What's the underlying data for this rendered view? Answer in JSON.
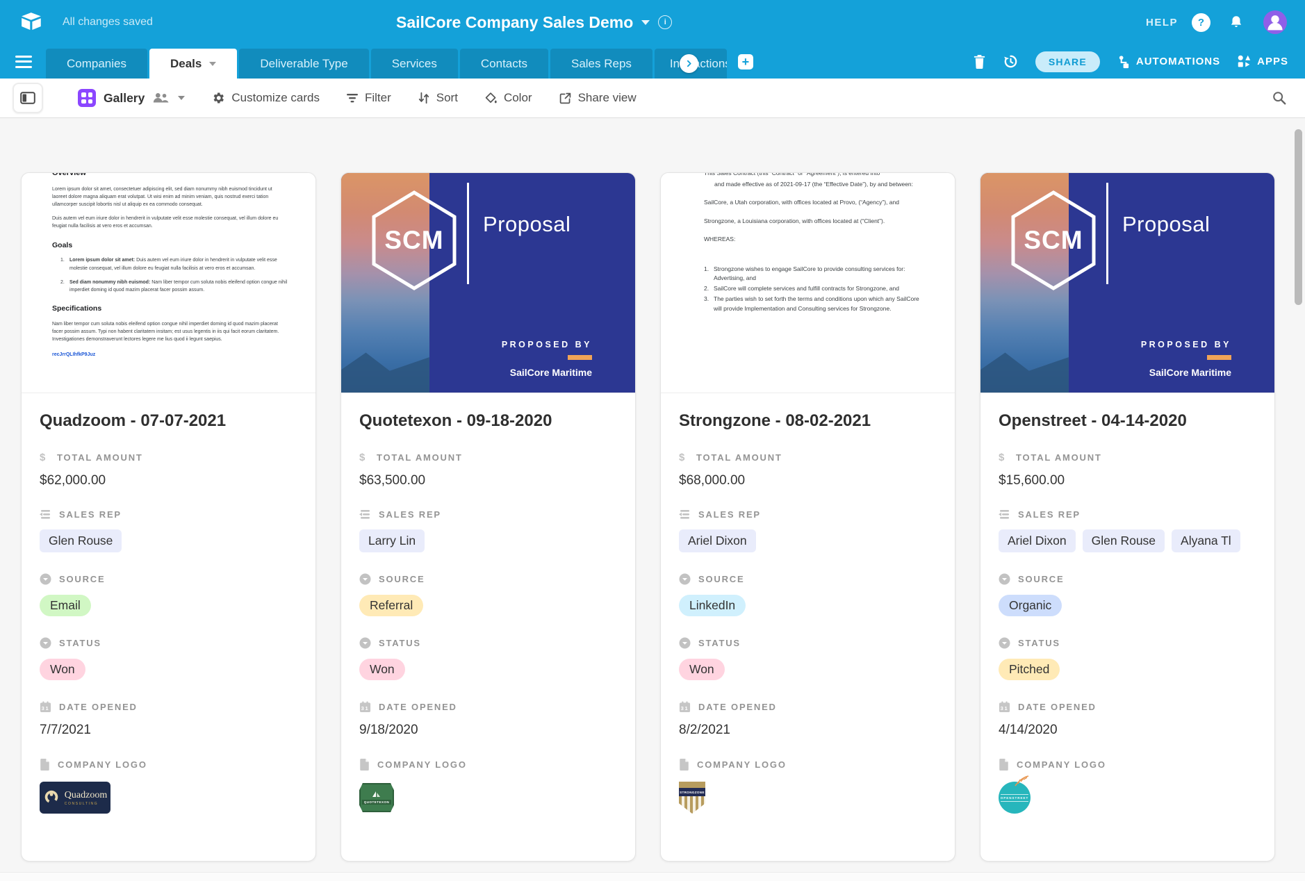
{
  "colors": {
    "topbar_bg": "#14a1d9",
    "tab_inactive_overlay": "rgba(0,0,0,0.13)",
    "active_tab_text": "#333333",
    "share_pill_bg": "#c9ecfa",
    "share_pill_text": "#0f9bd2",
    "gallery_purple": "#8b46ff",
    "avatar_bg": "#8f5fe8",
    "proposal_navy": "#2c3792",
    "accent_orange": "#f0a457",
    "content_bg": "#f6f6f6",
    "rep_chip_bg": "#e9ecfb"
  },
  "icons": {
    "help_glyph": "?",
    "info_glyph": "i",
    "plus_glyph": "+",
    "currency_glyph": "$",
    "calendar_glyph": "31"
  },
  "topbar": {
    "status": "All changes saved",
    "title": "SailCore Company Sales Demo",
    "help": "HELP"
  },
  "tabs": [
    "Companies",
    "Deals",
    "Deliverable Type",
    "Services",
    "Contacts",
    "Sales Reps",
    "Interactions"
  ],
  "active_tab": "Deals",
  "tabbar_actions": {
    "share": "SHARE",
    "automations": "AUTOMATIONS",
    "apps": "APPS"
  },
  "toolbar": {
    "view": "Gallery",
    "customize": "Customize cards",
    "filter": "Filter",
    "sort": "Sort",
    "color": "Color",
    "share_view": "Share view"
  },
  "field_labels": {
    "amount": "TOTAL AMOUNT",
    "rep": "SALES REP",
    "source": "SOURCE",
    "status": "STATUS",
    "date": "DATE OPENED",
    "logo": "COMPANY LOGO"
  },
  "cards": [
    {
      "title": "Quadzoom - 07-07-2021",
      "amount": "$62,000.00",
      "reps": [
        "Glen Rouse"
      ],
      "source": {
        "label": "Email",
        "bg": "#d1f7c4"
      },
      "status": {
        "label": "Won",
        "bg": "#ffd4e0"
      },
      "date": "7/7/2021",
      "logo": {
        "kind": "quadzoom",
        "text": "Quadzoom",
        "sub": "CONSULTING"
      },
      "preview": {
        "kind": "doc1",
        "blocks": [
          {
            "t": "hcut",
            "text": "Overview"
          },
          {
            "t": "p",
            "text": "Lorem ipsum dolor sit amet, consectetuer adipiscing elit, sed diam nonummy nibh euismod tincidunt ut laoreet dolore magna aliquam erat volutpat. Ut wisi enim ad minim veniam, quis nostrud exerci tation ullamcorper suscipit lobortis nisl ut aliquip ex ea commodo consequat."
          },
          {
            "t": "p",
            "text": "Duis autem vel eum iriure dolor in hendrerit in vulputate velit esse molestie consequat, vel illum dolore eu feugiat nulla facilisis at vero eros et accumsan."
          },
          {
            "t": "h",
            "text": "Goals"
          },
          {
            "t": "li",
            "num": "1.",
            "lead": "Lorem ipsum dolor sit amet:",
            "text": " Duis autem vel eum iriure dolor in hendrerit in vulputate velit esse molestie consequat, vel illum dolore eu feugiat nulla facilisis at vero eros et accumsan."
          },
          {
            "t": "li",
            "num": "2.",
            "lead": "Sed diam nonummy nibh euismod:",
            "text": " Nam liber tempor cum soluta nobis eleifend option congue nihil imperdiet doming id quod mazim placerat facer possim assum."
          },
          {
            "t": "h",
            "text": "Specifications"
          },
          {
            "t": "p",
            "text": "Nam liber tempor cum soluta nobis eleifend option congue nihil imperdiet doming id quod mazim placerat facer possim assum. Typi non habent claritatem insitam; est usus legentis in iis qui facit eorum claritatem. Investigationes demonstraverunt lectores legere me lius quod ii legunt saepius."
          },
          {
            "t": "link",
            "text": "recJrrQLIhfkP9Juz"
          }
        ]
      }
    },
    {
      "title": "Quotetexon - 09-18-2020",
      "amount": "$63,500.00",
      "reps": [
        "Larry Lin"
      ],
      "source": {
        "label": "Referral",
        "bg": "#ffeab6"
      },
      "status": {
        "label": "Won",
        "bg": "#ffd4e0"
      },
      "date": "9/18/2020",
      "logo": {
        "kind": "quotetexon",
        "text": "QUOTETEXON"
      },
      "preview": {
        "kind": "proposal",
        "scm": "SCM",
        "title": "Proposal",
        "proposed_by": "PROPOSED BY",
        "org": "SailCore Maritime"
      }
    },
    {
      "title": "Strongzone - 08-02-2021",
      "amount": "$68,000.00",
      "reps": [
        "Ariel Dixon"
      ],
      "source": {
        "label": "LinkedIn",
        "bg": "#d0f0fd"
      },
      "status": {
        "label": "Won",
        "bg": "#ffd4e0"
      },
      "date": "8/2/2021",
      "logo": {
        "kind": "strongzone",
        "text": "STRONGZONE"
      },
      "preview": {
        "kind": "doc2",
        "blocks": [
          {
            "t": "cut",
            "text": "This Sales Contract (this “Contract” or “Agreement”), is entered into"
          },
          {
            "t": "ind",
            "text": "and made effective as of 2021-09-17 (the “Effective Date”), by and between:"
          },
          {
            "t": "hang",
            "text": "SailCore, a Utah corporation, with offices located at Provo, (“Agency”), and"
          },
          {
            "t": "hang",
            "text": "Strongzone, a Louisiana corporation, with offices located at (“Client”)."
          },
          {
            "t": "p2",
            "text": "WHEREAS:"
          },
          {
            "t": "oli",
            "num": "1.",
            "text": "Strongzone wishes to engage SailCore to provide consulting services for: Advertising, and"
          },
          {
            "t": "oli",
            "num": "2.",
            "text": "SailCore will complete services and fulfill contracts for Strongzone, and"
          },
          {
            "t": "oli",
            "num": "3.",
            "text": "The parties wish to set forth the terms and conditions upon which any SailCore will provide Implementation and Consulting services for Strongzone."
          }
        ]
      }
    },
    {
      "title": "Openstreet - 04-14-2020",
      "amount": "$15,600.00",
      "reps": [
        "Ariel Dixon",
        "Glen Rouse",
        "Alyana Tl"
      ],
      "source": {
        "label": "Organic",
        "bg": "#cdddfc"
      },
      "status": {
        "label": "Pitched",
        "bg": "#ffeab6"
      },
      "date": "4/14/2020",
      "logo": {
        "kind": "openstreet",
        "text": "OPENSTREET"
      },
      "preview": {
        "kind": "proposal",
        "scm": "SCM",
        "title": "Proposal",
        "proposed_by": "PROPOSED BY",
        "org": "SailCore Maritime"
      }
    }
  ]
}
